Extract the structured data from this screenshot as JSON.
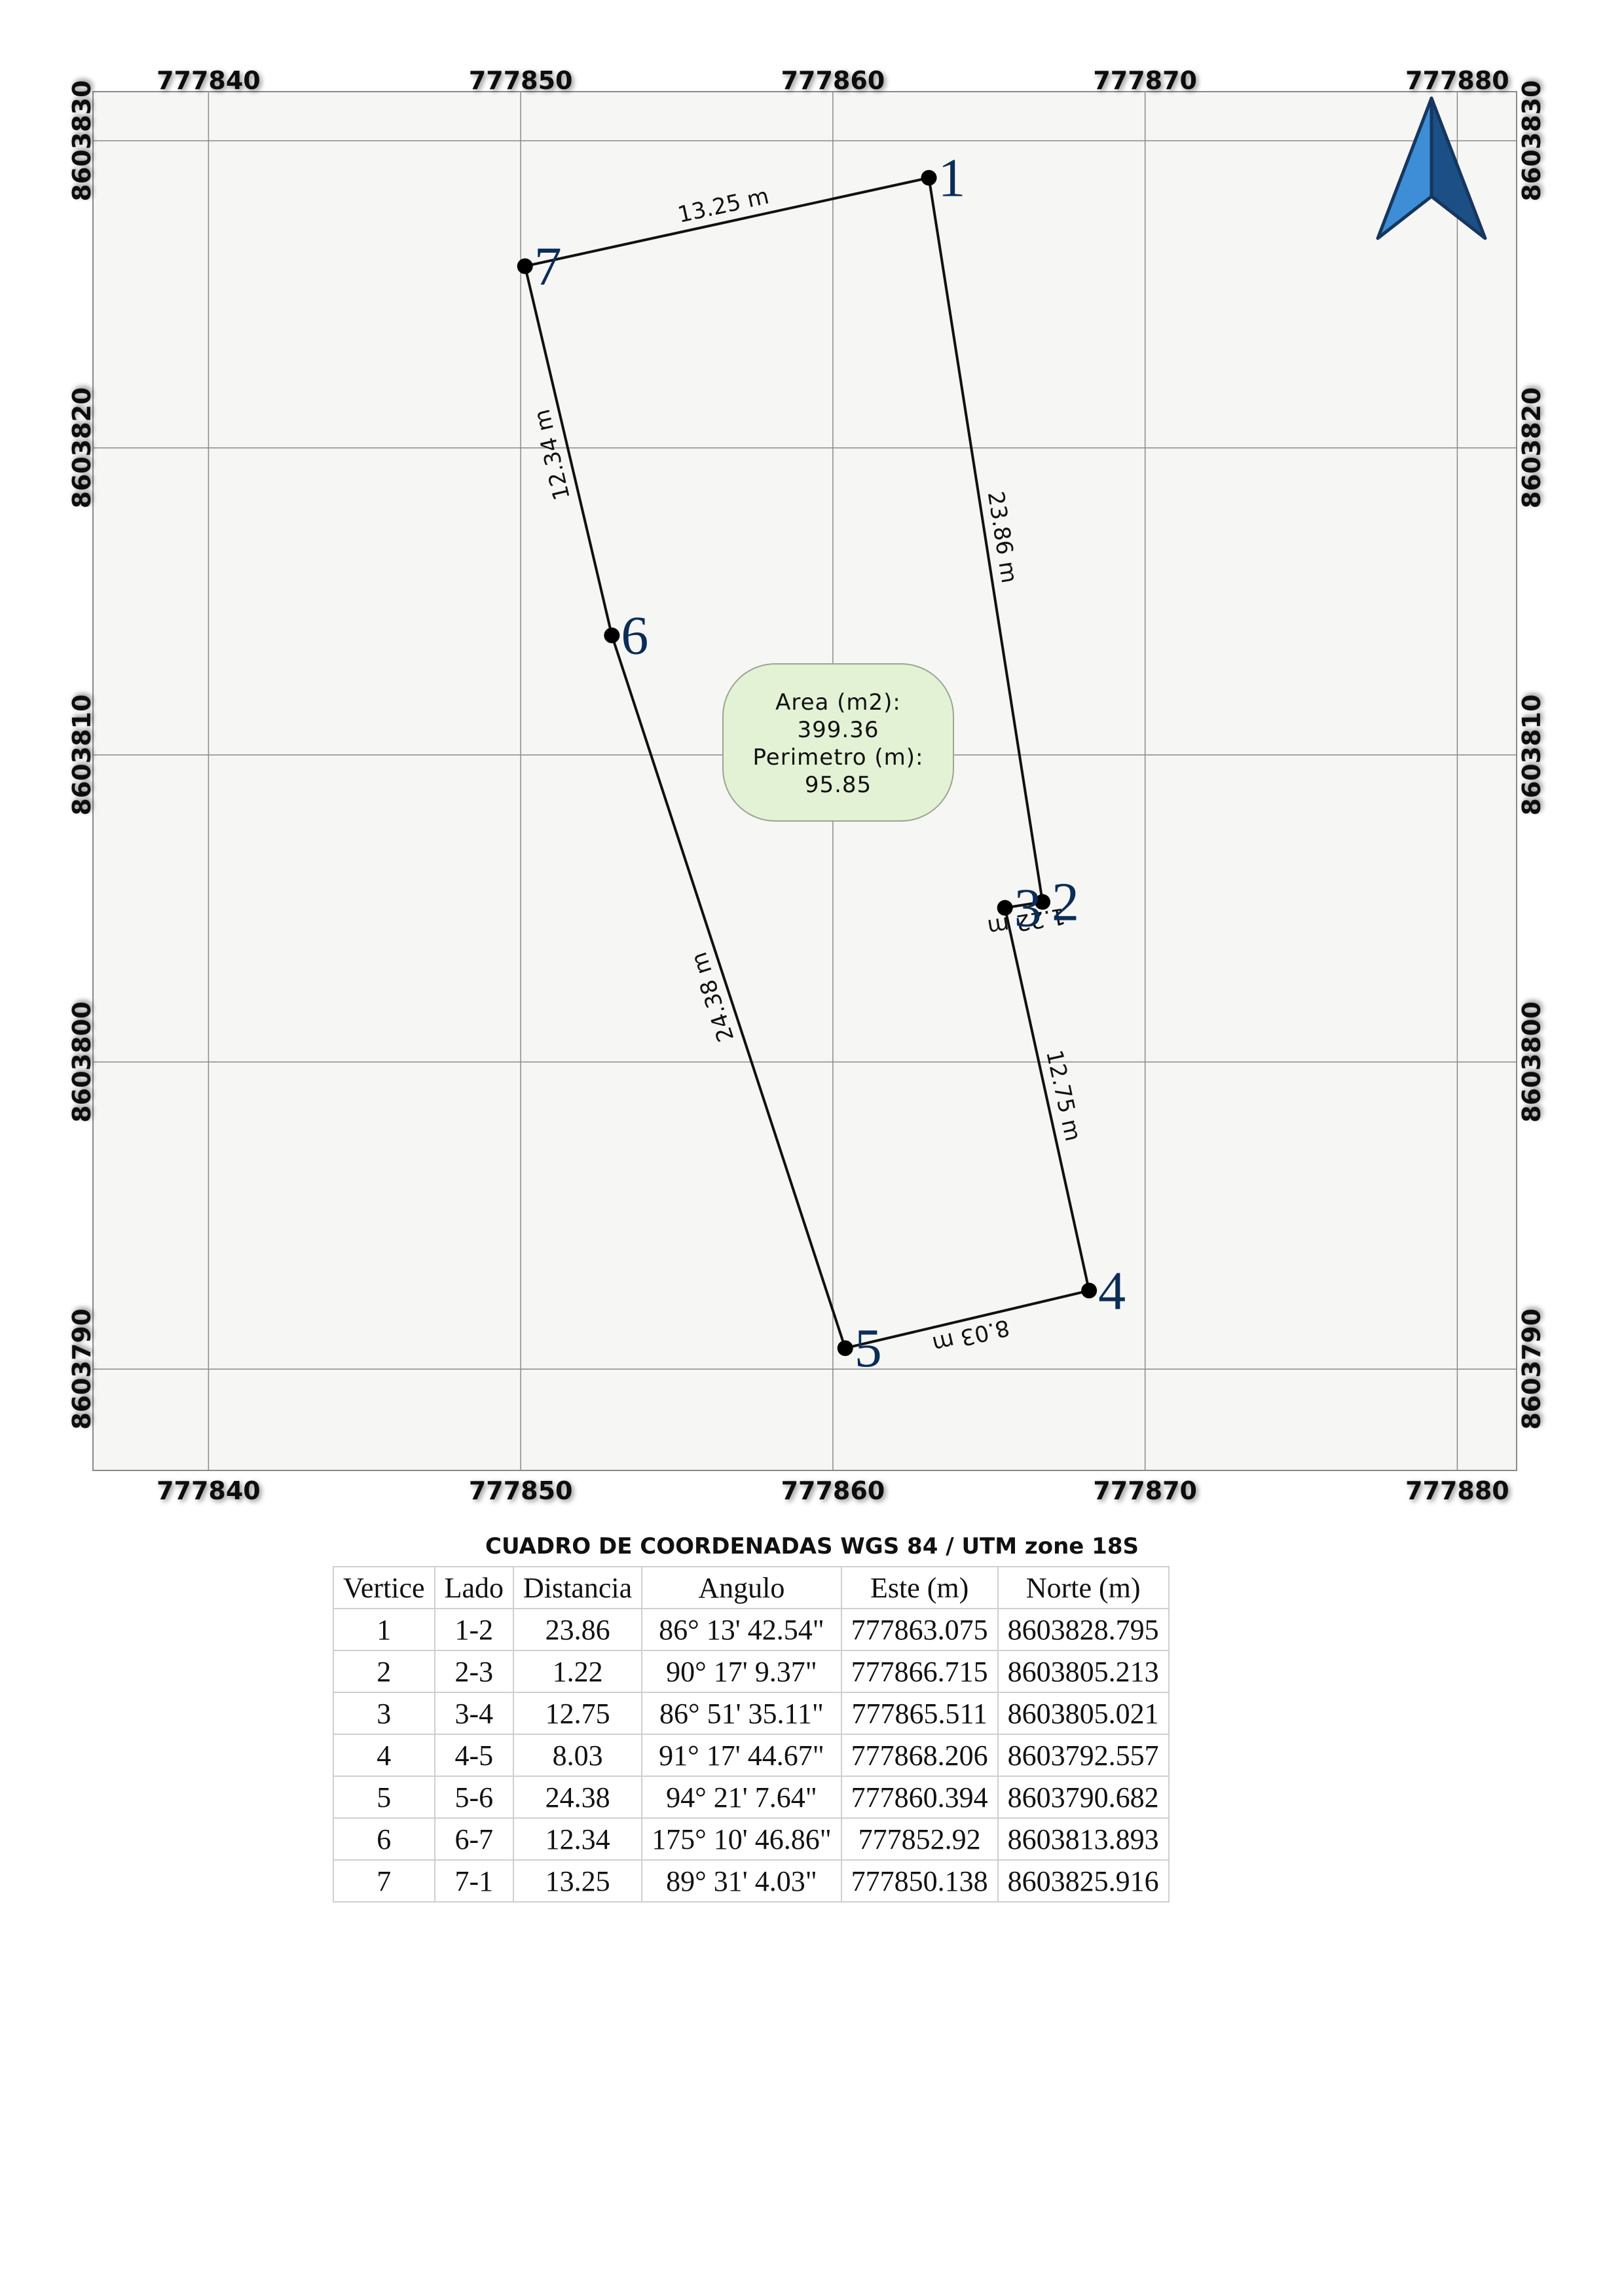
{
  "map": {
    "crs_units": "UTM",
    "x_ticks": [
      "777840",
      "777850",
      "777860",
      "777870",
      "777880"
    ],
    "y_ticks": [
      "8603830",
      "8603820",
      "8603810",
      "8603800",
      "8603790"
    ],
    "x_range": [
      777836.3,
      777881.9
    ],
    "y_range": [
      8603786.7,
      8603831.6
    ],
    "vertices": [
      {
        "id": "1",
        "e": 777863.075,
        "n": 8603828.795
      },
      {
        "id": "2",
        "e": 777866.715,
        "n": 8603805.213
      },
      {
        "id": "3",
        "e": 777865.511,
        "n": 8603805.021
      },
      {
        "id": "4",
        "e": 777868.206,
        "n": 8603792.557
      },
      {
        "id": "5",
        "e": 777860.394,
        "n": 8603790.682
      },
      {
        "id": "6",
        "e": 777852.92,
        "n": 8603813.893
      },
      {
        "id": "7",
        "e": 777850.138,
        "n": 8603825.916
      }
    ],
    "edge_labels": [
      "23.86 m",
      "1.22 m",
      "12.75 m",
      "8.03 m",
      "24.38 m",
      "12.34 m",
      "13.25 m"
    ],
    "area_box": {
      "line1": "Area (m2):",
      "line2": "399.36",
      "line3": "Perimetro (m):",
      "line4": "95.85"
    },
    "north_arrow": "north-arrow-icon",
    "colors": {
      "background": "#f6f6f5",
      "grid": "#8a8a8a",
      "polygon": "#111111",
      "vertex_label": "#0b2d57",
      "area_fill": "#e3f1d5",
      "arrow_light": "#3d8ed6",
      "arrow_dark": "#1b4f86"
    }
  },
  "table": {
    "title": "CUADRO DE COORDENADAS WGS 84 / UTM zone 18S",
    "headers": [
      "Vertice",
      "Lado",
      "Distancia",
      "Angulo",
      "Este (m)",
      "Norte (m)"
    ],
    "rows": [
      [
        "1",
        "1-2",
        "23.86",
        "86° 13' 42.54\"",
        "777863.075",
        "8603828.795"
      ],
      [
        "2",
        "2-3",
        "1.22",
        "90° 17' 9.37\"",
        "777866.715",
        "8603805.213"
      ],
      [
        "3",
        "3-4",
        "12.75",
        "86° 51' 35.11\"",
        "777865.511",
        "8603805.021"
      ],
      [
        "4",
        "4-5",
        "8.03",
        "91° 17' 44.67\"",
        "777868.206",
        "8603792.557"
      ],
      [
        "5",
        "5-6",
        "24.38",
        "94° 21' 7.64\"",
        "777860.394",
        "8603790.682"
      ],
      [
        "6",
        "6-7",
        "12.34",
        "175° 10' 46.86\"",
        "777852.92",
        "8603813.893"
      ],
      [
        "7",
        "7-1",
        "13.25",
        "89° 31' 4.03\"",
        "777850.138",
        "8603825.916"
      ]
    ]
  }
}
